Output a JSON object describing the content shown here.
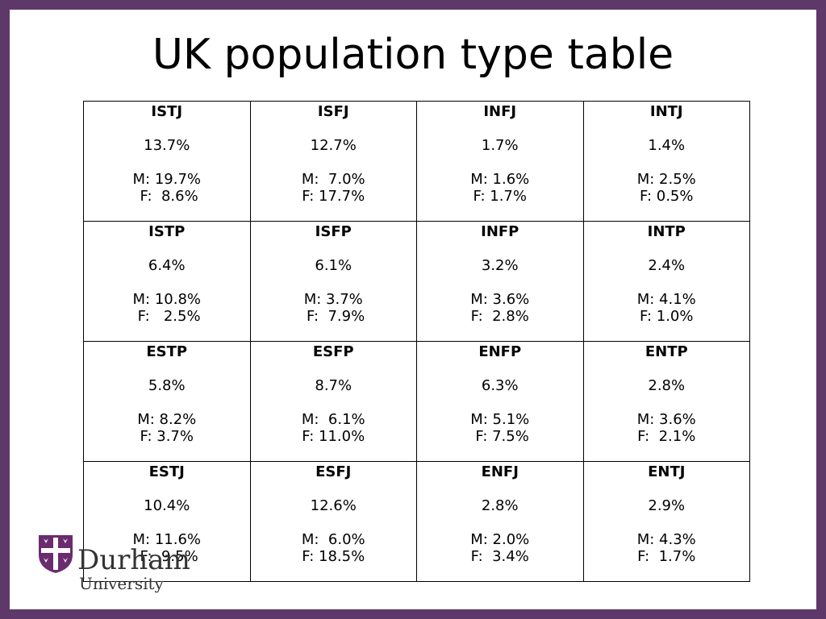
{
  "slide": {
    "title": "UK population type table",
    "rows": [
      [
        {
          "type": "ISTJ",
          "total": "13.7%",
          "male": "M: 19.7%",
          "female": " F:  8.6%"
        },
        {
          "type": "ISFJ",
          "total": "12.7%",
          "male": "M:  7.0%",
          "female": "F: 17.7%"
        },
        {
          "type": "INFJ",
          "total": "1.7%",
          "male": "M: 1.6%",
          "female": "F: 1.7%"
        },
        {
          "type": "INTJ",
          "total": "1.4%",
          "male": "M: 2.5%",
          "female": "F: 0.5%"
        }
      ],
      [
        {
          "type": "ISTP",
          "total": "6.4%",
          "male": "M: 10.8%",
          "female": " F:   2.5%"
        },
        {
          "type": "ISFP",
          "total": "6.1%",
          "male": "M: 3.7%",
          "female": " F:  7.9%"
        },
        {
          "type": "INFP",
          "total": "3.2%",
          "male": "M: 3.6%",
          "female": "F:  2.8%"
        },
        {
          "type": "INTP",
          "total": "2.4%",
          "male": "M: 4.1%",
          "female": "F: 1.0%"
        }
      ],
      [
        {
          "type": "ESTP",
          "total": "5.8%",
          "male": "M: 8.2%",
          "female": "F: 3.7%"
        },
        {
          "type": "ESFP",
          "total": "8.7%",
          "male": "M:  6.1%",
          "female": "F: 11.0%"
        },
        {
          "type": "ENFP",
          "total": "6.3%",
          "male": "M: 5.1%",
          "female": " F: 7.5%"
        },
        {
          "type": "ENTP",
          "total": "2.8%",
          "male": "M: 3.6%",
          "female": "F:  2.1%"
        }
      ],
      [
        {
          "type": "ESTJ",
          "total": "10.4%",
          "male": "M: 11.6%",
          "female": " F:  9.5%"
        },
        {
          "type": "ESFJ",
          "total": "12.6%",
          "male": "M:  6.0%",
          "female": "F: 18.5%"
        },
        {
          "type": "ENFJ",
          "total": "2.8%",
          "male": "M: 2.0%",
          "female": "F:  3.4%"
        },
        {
          "type": "ENTJ",
          "total": "2.9%",
          "male": "M: 4.3%",
          "female": "F:  1.7%"
        }
      ]
    ]
  },
  "logo": {
    "name": "Durham",
    "subtitle": "University",
    "crest_icon": "durham-crest-icon"
  },
  "colors": {
    "border": "#5e3868",
    "crest": "#6b2c6f",
    "text": "#000000"
  }
}
